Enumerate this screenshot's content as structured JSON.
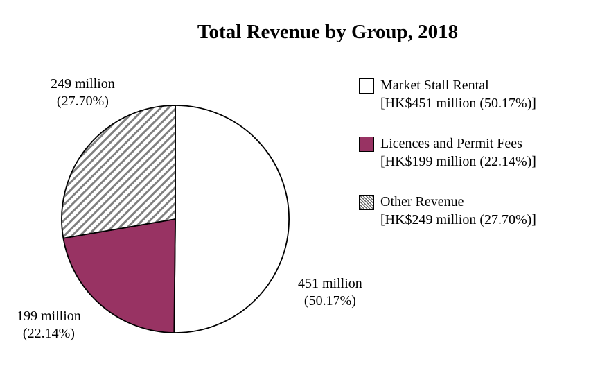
{
  "chart_data": {
    "type": "pie",
    "title": "Total Revenue by Group, 2018",
    "categories": [
      "Market Stall Rental",
      "Licences and Permit Fees",
      "Other Revenue"
    ],
    "values": [
      451,
      199,
      249
    ],
    "percentages": [
      50.17,
      22.14,
      27.7
    ],
    "unit": "HK$ million",
    "colors": [
      "#ffffff",
      "#983363",
      "hatched"
    ],
    "slice_labels": [
      {
        "line1": "451 million",
        "line2": "(50.17%)"
      },
      {
        "line1": "199 million",
        "line2": "(22.14%)"
      },
      {
        "line1": "249 million",
        "line2": "(27.70%)"
      }
    ],
    "legend": {
      "placement": "right",
      "items": [
        {
          "name": "Market Stall Rental",
          "detail": "[HK$451 million (50.17%)]"
        },
        {
          "name": "Licences and Permit Fees",
          "detail": "[HK$199 million (22.14%)]"
        },
        {
          "name": "Other Revenue",
          "detail": "[HK$249 million (27.70%)]"
        }
      ]
    }
  }
}
